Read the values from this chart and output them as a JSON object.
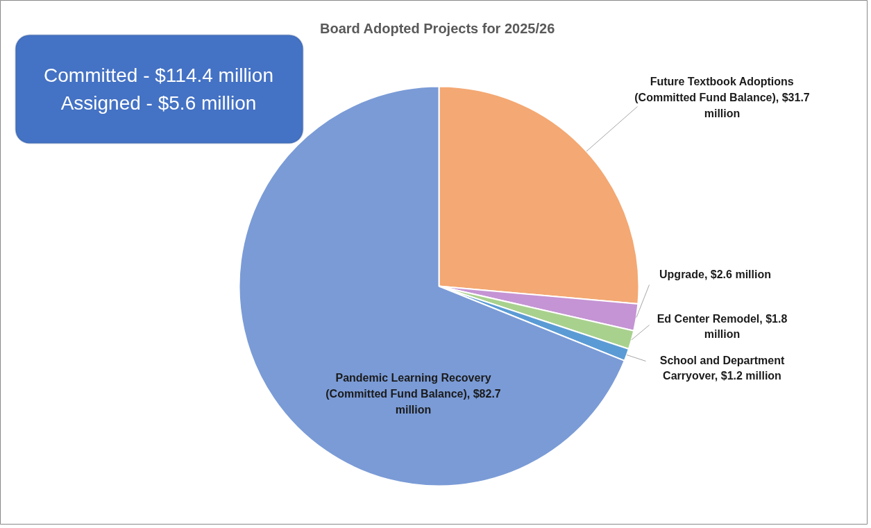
{
  "chart_data": {
    "type": "pie",
    "title": "Board Adopted Projects for 2025/26",
    "categories": [
      "Future Textbook Adoptions (Committed Fund Balance)",
      "Upgrade",
      "Ed Center Remodel",
      "School and Department Carryover",
      "Pandemic Learning Recovery (Committed Fund Balance)"
    ],
    "values": [
      31.7,
      2.6,
      1.8,
      1.2,
      82.7
    ],
    "value_labels": [
      "$31.7 million",
      "$2.6 million",
      "$1.8 million",
      "$1.2 million",
      "$82.7 million"
    ],
    "colors": [
      "#f4a873",
      "#c594d4",
      "#a9d18e",
      "#5b9bd5",
      "#7a9bd6"
    ],
    "annotations": [
      "Committed - $114.4 million",
      "Assigned - $5.6 million"
    ]
  }
}
